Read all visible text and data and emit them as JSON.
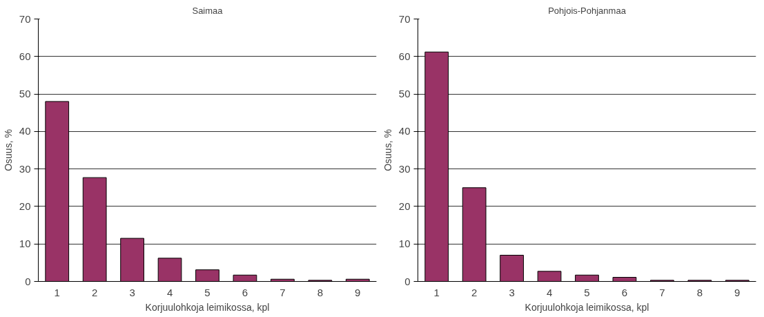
{
  "chart_data": [
    {
      "type": "bar",
      "title": "Saimaa",
      "xlabel": "Korjuulohkoja leimikossa, kpl",
      "ylabel": "Osuus, %",
      "categories": [
        "1",
        "2",
        "3",
        "4",
        "5",
        "6",
        "7",
        "8",
        "9"
      ],
      "values": [
        48,
        27.7,
        11.5,
        6.2,
        3.1,
        1.7,
        0.6,
        0.3,
        0.6
      ],
      "color": "#993366",
      "ylim": [
        0,
        70
      ],
      "yticks": [
        0,
        10,
        20,
        30,
        40,
        50,
        60,
        70
      ],
      "grid": "y"
    },
    {
      "type": "bar",
      "title": "Pohjois-Pohjanmaa",
      "xlabel": "Korjuulohkoja leimikossa, kpl",
      "ylabel": "Osuus, %",
      "categories": [
        "1",
        "2",
        "3",
        "4",
        "5",
        "6",
        "7",
        "8",
        "9"
      ],
      "values": [
        61.2,
        25,
        7,
        2.7,
        1.7,
        1.1,
        0.3,
        0.3,
        0.3
      ],
      "color": "#993366",
      "ylim": [
        0,
        70
      ],
      "yticks": [
        0,
        10,
        20,
        30,
        40,
        50,
        60,
        70
      ],
      "grid": "y"
    }
  ]
}
